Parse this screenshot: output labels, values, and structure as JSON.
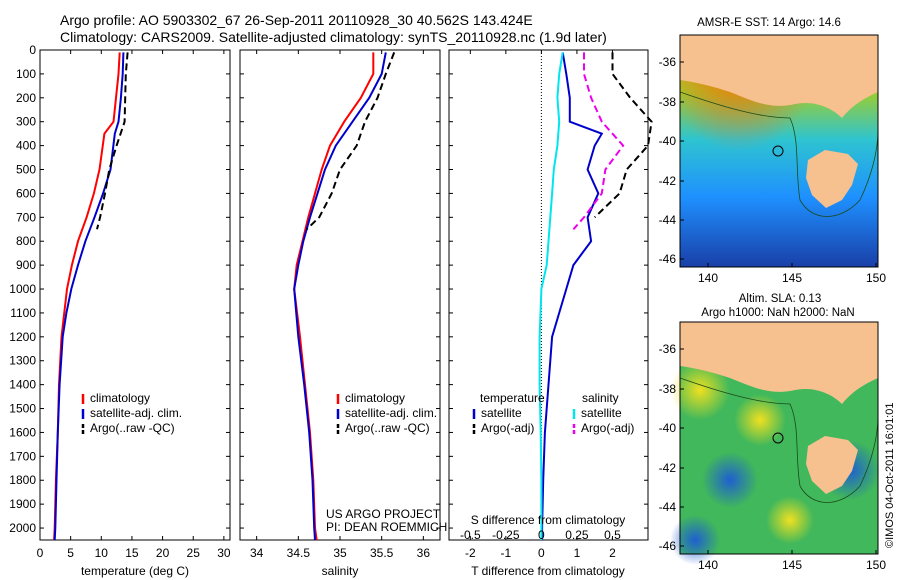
{
  "header": {
    "line1": "Argo profile: AO 5903302_67 26-Sep-2011 20110928_30 40.562S 143.424E",
    "line2": "Climatology: CARS2009. Satellite-adjusted climatology: synTS_20110928.nc (1.9d later)"
  },
  "colors": {
    "climatology": "#ff0000",
    "satellite": "#0000cc",
    "argo": "#000000",
    "sat_salinity": "#00e5ee",
    "argo_salinity": "#ee00ee",
    "land": "#f7c08f"
  },
  "chart_data": [
    {
      "type": "line",
      "id": "temperature",
      "xlabel": "temperature (deg C)",
      "ylabel": "",
      "xlim": [
        0,
        31
      ],
      "ylim": [
        2050,
        0
      ],
      "y_reversed": true,
      "xticks": [
        0,
        5,
        10,
        15,
        20,
        25,
        30
      ],
      "yticks": [
        0,
        100,
        200,
        300,
        400,
        500,
        600,
        700,
        800,
        900,
        1000,
        1100,
        1200,
        1300,
        1400,
        1500,
        1600,
        1700,
        1800,
        1900,
        2000
      ],
      "legend": [
        "climatology",
        "satellite-adj. clim.",
        "Argo(..raw -QC)"
      ],
      "series": [
        {
          "name": "climatology",
          "color": "#ff0000",
          "style": "solid",
          "depth": [
            10,
            100,
            200,
            300,
            350,
            500,
            600,
            700,
            800,
            900,
            1000,
            1200,
            1400,
            1600,
            1800,
            2000,
            2050
          ],
          "values": [
            13.0,
            12.8,
            12.4,
            12.0,
            10.5,
            9.7,
            8.8,
            7.6,
            6.2,
            5.2,
            4.4,
            3.5,
            3.1,
            2.9,
            2.6,
            2.4,
            2.3
          ]
        },
        {
          "name": "satellite-adj. clim.",
          "color": "#0000cc",
          "style": "solid",
          "depth": [
            10,
            100,
            200,
            300,
            350,
            500,
            600,
            700,
            800,
            900,
            1000,
            1100,
            1200,
            1400,
            1600,
            1800,
            2000,
            2050
          ],
          "values": [
            13.6,
            13.5,
            13.2,
            12.8,
            12.2,
            11.5,
            10.3,
            8.9,
            7.4,
            6.2,
            5.1,
            4.3,
            3.7,
            3.2,
            2.9,
            2.7,
            2.5,
            2.4
          ]
        },
        {
          "name": "Argo(..raw -QC)",
          "color": "#000000",
          "style": "dashed",
          "depth": [
            10,
            100,
            200,
            300,
            400,
            500,
            600,
            700,
            750
          ],
          "values": [
            14.3,
            14.0,
            13.9,
            13.8,
            12.5,
            11.3,
            10.6,
            9.8,
            9.3
          ]
        }
      ]
    },
    {
      "type": "line",
      "id": "salinity",
      "xlabel": "salinity",
      "ylabel": "",
      "xlim": [
        33.8,
        36.2
      ],
      "ylim": [
        2050,
        0
      ],
      "y_reversed": true,
      "xticks": [
        34,
        34.5,
        35,
        35.5,
        36
      ],
      "legend": [
        "climatology",
        "satellite-adj. clim.",
        "Argo(..raw -QC)"
      ],
      "annotations": [
        "US ARGO PROJECT",
        "PI: DEAN ROEMMICH"
      ],
      "series": [
        {
          "name": "climatology",
          "color": "#ff0000",
          "style": "solid",
          "depth": [
            10,
            100,
            200,
            300,
            400,
            500,
            600,
            700,
            800,
            900,
            1000,
            1200,
            1400,
            1600,
            1800,
            2000,
            2050
          ],
          "values": [
            35.4,
            35.4,
            35.25,
            35.05,
            34.88,
            34.78,
            34.7,
            34.62,
            34.55,
            34.48,
            34.45,
            34.52,
            34.58,
            34.64,
            34.68,
            34.7,
            34.72
          ]
        },
        {
          "name": "satellite-adj. clim.",
          "color": "#0000cc",
          "style": "solid",
          "depth": [
            10,
            100,
            200,
            300,
            400,
            500,
            600,
            700,
            800,
            900,
            1000,
            1200,
            1400,
            1600,
            1800,
            2000,
            2050
          ],
          "values": [
            35.55,
            35.5,
            35.35,
            35.15,
            34.95,
            34.82,
            34.73,
            34.64,
            34.56,
            34.5,
            34.45,
            34.5,
            34.57,
            34.63,
            34.67,
            34.69,
            34.7
          ]
        },
        {
          "name": "Argo(..raw -QC)",
          "color": "#000000",
          "style": "dashed",
          "depth": [
            10,
            100,
            200,
            300,
            400,
            500,
            600,
            700,
            750
          ],
          "values": [
            35.65,
            35.55,
            35.45,
            35.3,
            35.2,
            35.0,
            34.9,
            34.75,
            34.6
          ]
        }
      ]
    },
    {
      "type": "line",
      "id": "difference",
      "xlabel": "T difference from climatology",
      "xlabel2": "S difference from climatology",
      "xlim": [
        -2.6,
        3.0
      ],
      "ylim": [
        2050,
        0
      ],
      "y_reversed": true,
      "xticks": [
        -2,
        -1,
        0,
        1,
        2
      ],
      "xticks_top_labels": [
        "-0.5",
        "-0.25",
        "0",
        "0.25",
        "0.5"
      ],
      "legend_headers": [
        "temperature",
        "salinity"
      ],
      "legend": [
        "satellite",
        "Argo(-adj)",
        "satellite",
        "Argo(-adj)"
      ],
      "series": [
        {
          "name": "satellite",
          "variable": "temperature",
          "color": "#0000cc",
          "style": "solid",
          "depth": [
            10,
            100,
            200,
            300,
            350,
            400,
            500,
            600,
            700,
            800,
            900,
            1000,
            1100,
            1200,
            1400,
            1600,
            1800,
            2000,
            2050
          ],
          "values": [
            0.6,
            0.7,
            0.8,
            0.8,
            1.7,
            1.5,
            1.3,
            1.6,
            1.3,
            1.4,
            0.9,
            0.7,
            0.5,
            0.3,
            0.2,
            0.1,
            0.05,
            0.02,
            0.02
          ]
        },
        {
          "name": "Argo(-adj)",
          "variable": "temperature",
          "color": "#000000",
          "style": "dashed",
          "depth": [
            10,
            100,
            200,
            300,
            400,
            500,
            600,
            700
          ],
          "values": [
            2.0,
            2.0,
            2.5,
            3.1,
            3.0,
            2.4,
            2.2,
            1.5
          ]
        },
        {
          "name": "satellite",
          "variable": "salinity",
          "color": "#00e5ee",
          "style": "solid",
          "depth": [
            10,
            100,
            200,
            300,
            400,
            500,
            600,
            700,
            800,
            900,
            1000,
            1200,
            1400,
            1600,
            1800,
            2000,
            2050
          ],
          "values": [
            0.6,
            0.5,
            0.45,
            0.5,
            0.45,
            0.35,
            0.3,
            0.25,
            0.2,
            0.15,
            0.0,
            -0.05,
            -0.05,
            -0.02,
            0.0,
            0.0,
            0.0
          ]
        },
        {
          "name": "Argo(-adj)",
          "variable": "salinity",
          "color": "#ee00ee",
          "style": "dashed",
          "depth": [
            10,
            100,
            200,
            300,
            400,
            500,
            600,
            700,
            750
          ],
          "values": [
            1.2,
            1.2,
            1.4,
            1.7,
            2.3,
            1.8,
            1.7,
            1.2,
            0.9
          ]
        }
      ]
    }
  ],
  "maps": [
    {
      "title": "AMSR-E SST: 14 Argo: 14.6",
      "lon_ticks": [
        "140",
        "145",
        "150"
      ],
      "lat_ticks": [
        "-36",
        "-38",
        "-40",
        "-42",
        "-44",
        "-46"
      ]
    },
    {
      "title_line1": "Altim. SLA: 0.13",
      "title_line2": "Argo h1000: NaN h2000: NaN",
      "lon_ticks": [
        "140",
        "145",
        "150"
      ],
      "lat_ticks": [
        "-36",
        "-38",
        "-40",
        "-42",
        "-44",
        "-46"
      ]
    }
  ],
  "footer": {
    "stamp": "©IMOS 04-Oct-2011 16:01:01"
  }
}
